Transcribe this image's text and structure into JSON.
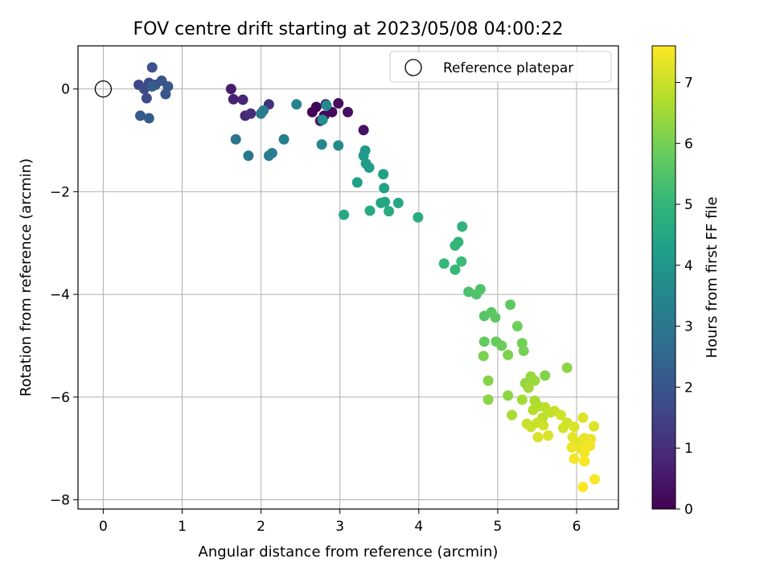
{
  "chart_data": {
    "type": "scatter",
    "title": "FOV centre drift starting at 2023/05/08 04:00:22",
    "xlabel": "Angular distance from reference (arcmin)",
    "ylabel": "Rotation from reference (arcmin)",
    "xlim": [
      -0.32,
      6.53
    ],
    "ylim": [
      -8.18,
      0.84
    ],
    "xticks": [
      0,
      1,
      2,
      3,
      4,
      5,
      6
    ],
    "yticks": [
      0,
      -2,
      -4,
      -6,
      -8
    ],
    "grid": true,
    "legend": {
      "placement": "top-right",
      "entries": [
        "Reference platepar"
      ]
    },
    "reference_point": {
      "x": 0,
      "y": 0,
      "marker": "open-circle"
    },
    "colorbar": {
      "label": "Hours from first FF file",
      "min": 0,
      "max": 7.6,
      "ticks": [
        0,
        1,
        2,
        3,
        4,
        5,
        6,
        7
      ],
      "colormap": "viridis",
      "colormap_stops": [
        "#440154",
        "#482878",
        "#3e4a89",
        "#31688e",
        "#26828e",
        "#1f9e89",
        "#35b779",
        "#6ece58",
        "#b5de2b",
        "#fde725"
      ]
    },
    "points": [
      {
        "x": 2.65,
        "y": -0.45,
        "h": 0.05
      },
      {
        "x": 2.7,
        "y": -0.35,
        "h": 0.1
      },
      {
        "x": 2.8,
        "y": -0.52,
        "h": 0.15
      },
      {
        "x": 2.9,
        "y": -0.45,
        "h": 0.2
      },
      {
        "x": 2.98,
        "y": -0.28,
        "h": 0.25
      },
      {
        "x": 3.1,
        "y": -0.45,
        "h": 0.3
      },
      {
        "x": 3.3,
        "y": -0.8,
        "h": 0.35
      },
      {
        "x": 2.82,
        "y": -0.3,
        "h": 0.45
      },
      {
        "x": 2.75,
        "y": -0.62,
        "h": 0.5
      },
      {
        "x": 1.62,
        "y": 0.0,
        "h": 0.6
      },
      {
        "x": 1.65,
        "y": -0.2,
        "h": 0.7
      },
      {
        "x": 1.77,
        "y": -0.21,
        "h": 0.8
      },
      {
        "x": 1.8,
        "y": -0.52,
        "h": 0.9
      },
      {
        "x": 1.87,
        "y": -0.48,
        "h": 1.0
      },
      {
        "x": 2.1,
        "y": -0.3,
        "h": 1.1
      },
      {
        "x": 0.45,
        "y": 0.08,
        "h": 1.6
      },
      {
        "x": 0.52,
        "y": 0.0,
        "h": 1.7
      },
      {
        "x": 0.55,
        "y": -0.18,
        "h": 1.75
      },
      {
        "x": 0.58,
        "y": 0.12,
        "h": 1.8
      },
      {
        "x": 0.62,
        "y": 0.42,
        "h": 1.85
      },
      {
        "x": 0.66,
        "y": 0.08,
        "h": 1.9
      },
      {
        "x": 0.74,
        "y": 0.16,
        "h": 1.95
      },
      {
        "x": 0.79,
        "y": -0.1,
        "h": 2.0
      },
      {
        "x": 0.82,
        "y": 0.05,
        "h": 2.05
      },
      {
        "x": 0.47,
        "y": -0.52,
        "h": 2.1
      },
      {
        "x": 0.58,
        "y": -0.57,
        "h": 2.15
      },
      {
        "x": 0.62,
        "y": 0.05,
        "h": 2.2
      },
      {
        "x": 1.68,
        "y": -0.98,
        "h": 3.0
      },
      {
        "x": 1.84,
        "y": -1.3,
        "h": 3.05
      },
      {
        "x": 2.0,
        "y": -0.48,
        "h": 3.1
      },
      {
        "x": 2.03,
        "y": -0.42,
        "h": 3.15
      },
      {
        "x": 2.1,
        "y": -1.3,
        "h": 3.2
      },
      {
        "x": 2.14,
        "y": -1.25,
        "h": 3.25
      },
      {
        "x": 2.29,
        "y": -0.98,
        "h": 3.3
      },
      {
        "x": 2.45,
        "y": -0.3,
        "h": 3.4
      },
      {
        "x": 2.77,
        "y": -1.08,
        "h": 3.5
      },
      {
        "x": 2.83,
        "y": -0.32,
        "h": 3.6
      },
      {
        "x": 2.98,
        "y": -1.1,
        "h": 3.7
      },
      {
        "x": 2.78,
        "y": -0.6,
        "h": 3.75
      },
      {
        "x": 3.32,
        "y": -1.2,
        "h": 4.05
      },
      {
        "x": 3.3,
        "y": -1.3,
        "h": 4.1
      },
      {
        "x": 3.33,
        "y": -1.45,
        "h": 4.15
      },
      {
        "x": 3.37,
        "y": -1.53,
        "h": 4.2
      },
      {
        "x": 3.22,
        "y": -1.82,
        "h": 4.25
      },
      {
        "x": 3.55,
        "y": -1.66,
        "h": 4.3
      },
      {
        "x": 3.56,
        "y": -1.93,
        "h": 4.35
      },
      {
        "x": 3.52,
        "y": -2.22,
        "h": 4.4
      },
      {
        "x": 3.57,
        "y": -2.2,
        "h": 4.45
      },
      {
        "x": 3.74,
        "y": -2.22,
        "h": 4.5
      },
      {
        "x": 3.05,
        "y": -2.45,
        "h": 4.55
      },
      {
        "x": 3.38,
        "y": -2.37,
        "h": 4.6
      },
      {
        "x": 3.62,
        "y": -2.38,
        "h": 4.65
      },
      {
        "x": 3.99,
        "y": -2.5,
        "h": 4.7
      },
      {
        "x": 4.55,
        "y": -2.68,
        "h": 4.9
      },
      {
        "x": 4.5,
        "y": -2.98,
        "h": 4.95
      },
      {
        "x": 4.46,
        "y": -3.05,
        "h": 5.0
      },
      {
        "x": 4.32,
        "y": -3.4,
        "h": 5.05
      },
      {
        "x": 4.46,
        "y": -3.52,
        "h": 5.1
      },
      {
        "x": 4.54,
        "y": -3.36,
        "h": 5.15
      },
      {
        "x": 4.63,
        "y": -3.95,
        "h": 5.4
      },
      {
        "x": 4.78,
        "y": -3.9,
        "h": 5.45
      },
      {
        "x": 4.73,
        "y": -4.0,
        "h": 5.5
      },
      {
        "x": 4.83,
        "y": -4.42,
        "h": 5.55
      },
      {
        "x": 4.92,
        "y": -4.35,
        "h": 5.6
      },
      {
        "x": 4.97,
        "y": -4.45,
        "h": 5.65
      },
      {
        "x": 5.16,
        "y": -4.2,
        "h": 5.7
      },
      {
        "x": 4.83,
        "y": -4.92,
        "h": 5.75
      },
      {
        "x": 4.98,
        "y": -4.92,
        "h": 5.8
      },
      {
        "x": 5.05,
        "y": -5.0,
        "h": 5.85
      },
      {
        "x": 5.25,
        "y": -4.62,
        "h": 5.9
      },
      {
        "x": 5.31,
        "y": -4.95,
        "h": 5.95
      },
      {
        "x": 5.33,
        "y": -5.1,
        "h": 6.0
      },
      {
        "x": 4.82,
        "y": -5.2,
        "h": 6.05
      },
      {
        "x": 5.13,
        "y": -5.18,
        "h": 6.1
      },
      {
        "x": 5.6,
        "y": -5.58,
        "h": 6.15
      },
      {
        "x": 4.88,
        "y": -5.68,
        "h": 6.2
      },
      {
        "x": 4.88,
        "y": -6.05,
        "h": 6.25
      },
      {
        "x": 5.13,
        "y": -5.97,
        "h": 6.3
      },
      {
        "x": 5.88,
        "y": -5.43,
        "h": 6.3
      },
      {
        "x": 5.35,
        "y": -5.73,
        "h": 6.35
      },
      {
        "x": 5.42,
        "y": -5.6,
        "h": 6.4
      },
      {
        "x": 5.47,
        "y": -5.68,
        "h": 6.45
      },
      {
        "x": 5.39,
        "y": -5.82,
        "h": 6.5
      },
      {
        "x": 5.31,
        "y": -6.05,
        "h": 6.55
      },
      {
        "x": 5.18,
        "y": -6.35,
        "h": 6.6
      },
      {
        "x": 5.47,
        "y": -6.07,
        "h": 6.65
      },
      {
        "x": 5.52,
        "y": -6.18,
        "h": 6.7
      },
      {
        "x": 5.45,
        "y": -6.25,
        "h": 6.75
      },
      {
        "x": 5.6,
        "y": -6.2,
        "h": 6.8
      },
      {
        "x": 5.57,
        "y": -6.4,
        "h": 6.85
      },
      {
        "x": 5.67,
        "y": -6.3,
        "h": 6.9
      },
      {
        "x": 5.72,
        "y": -6.27,
        "h": 6.95
      },
      {
        "x": 5.37,
        "y": -6.52,
        "h": 6.95
      },
      {
        "x": 5.42,
        "y": -6.58,
        "h": 7.0
      },
      {
        "x": 5.5,
        "y": -6.5,
        "h": 7.0
      },
      {
        "x": 5.58,
        "y": -6.55,
        "h": 7.05
      },
      {
        "x": 5.8,
        "y": -6.35,
        "h": 7.05
      },
      {
        "x": 5.88,
        "y": -6.5,
        "h": 7.1
      },
      {
        "x": 5.83,
        "y": -6.6,
        "h": 7.1
      },
      {
        "x": 5.51,
        "y": -6.78,
        "h": 7.15
      },
      {
        "x": 5.64,
        "y": -6.75,
        "h": 7.2
      },
      {
        "x": 5.97,
        "y": -6.58,
        "h": 7.2
      },
      {
        "x": 6.08,
        "y": -6.4,
        "h": 7.25
      },
      {
        "x": 6.22,
        "y": -6.57,
        "h": 7.25
      },
      {
        "x": 5.95,
        "y": -6.78,
        "h": 7.3
      },
      {
        "x": 6.02,
        "y": -6.88,
        "h": 7.3
      },
      {
        "x": 6.1,
        "y": -6.8,
        "h": 7.35
      },
      {
        "x": 6.18,
        "y": -6.82,
        "h": 7.35
      },
      {
        "x": 5.94,
        "y": -6.98,
        "h": 7.4
      },
      {
        "x": 6.05,
        "y": -7.0,
        "h": 7.4
      },
      {
        "x": 6.12,
        "y": -6.93,
        "h": 7.45
      },
      {
        "x": 6.17,
        "y": -6.95,
        "h": 7.45
      },
      {
        "x": 6.1,
        "y": -7.08,
        "h": 7.5
      },
      {
        "x": 5.97,
        "y": -7.2,
        "h": 7.5
      },
      {
        "x": 6.1,
        "y": -7.25,
        "h": 7.55
      },
      {
        "x": 6.23,
        "y": -7.6,
        "h": 7.55
      },
      {
        "x": 6.08,
        "y": -7.75,
        "h": 7.6
      }
    ]
  }
}
